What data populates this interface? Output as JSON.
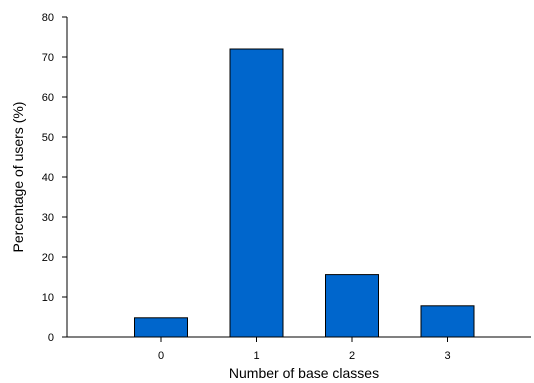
{
  "chart_data": {
    "type": "bar",
    "title": "",
    "xlabel": "Number of base classes",
    "ylabel": "Percentage of users (%)",
    "categories": [
      "0",
      "1",
      "2",
      "3"
    ],
    "values": [
      4.8,
      72,
      15.6,
      7.8
    ],
    "ylim": [
      0,
      80
    ],
    "yticks": [
      "0",
      "10",
      "20",
      "30",
      "40",
      "50",
      "60",
      "70",
      "80"
    ],
    "grid": false,
    "legend": "none",
    "bar_color": "#0066cc",
    "bar_edge_color": "#000000"
  }
}
